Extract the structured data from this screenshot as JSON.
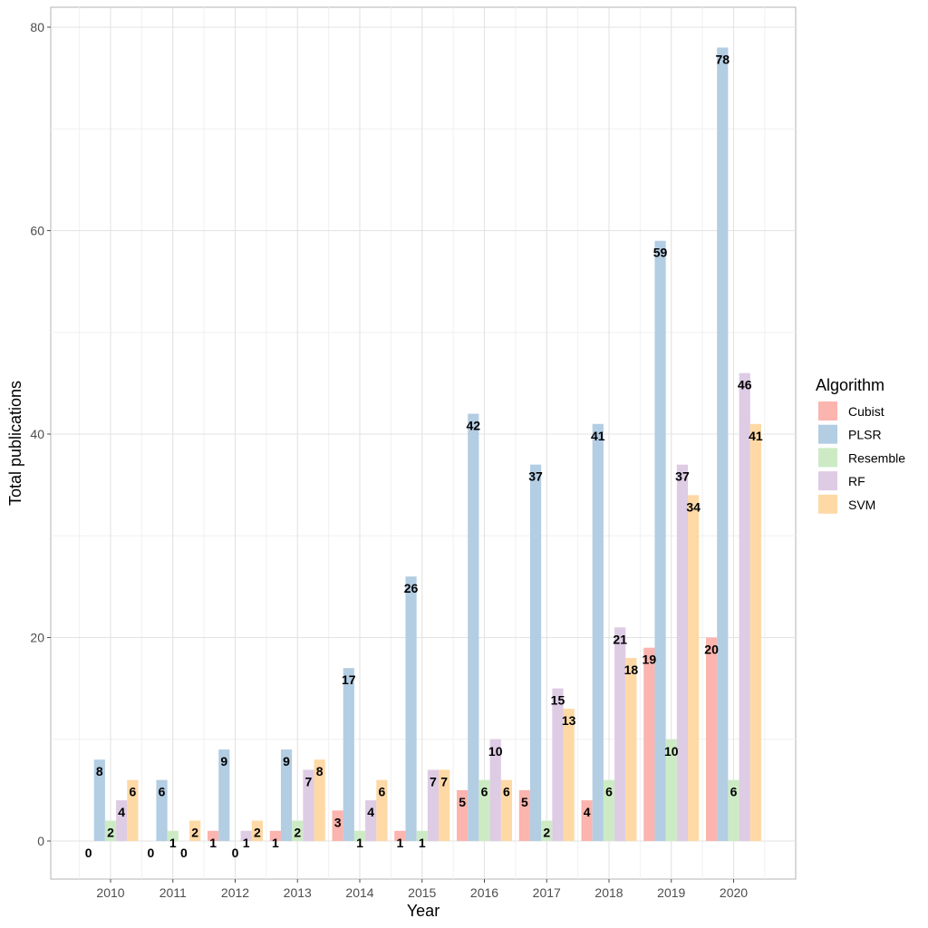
{
  "chart_data": {
    "type": "bar",
    "xlabel": "Year",
    "ylabel": "Total publications",
    "categories": [
      "2010",
      "2011",
      "2012",
      "2013",
      "2014",
      "2015",
      "2016",
      "2017",
      "2018",
      "2019",
      "2020"
    ],
    "ylim": [
      -4,
      80
    ],
    "yticks": [
      0,
      20,
      40,
      60,
      80
    ],
    "grid": true,
    "legend": {
      "title": "Algorithm",
      "position": "right"
    },
    "series": [
      {
        "name": "Cubist",
        "color": "#FBB4AE",
        "values": [
          0,
          0,
          1,
          1,
          3,
          1,
          5,
          5,
          4,
          19,
          20
        ]
      },
      {
        "name": "PLSR",
        "color": "#B3CDE3",
        "values": [
          8,
          6,
          9,
          9,
          17,
          26,
          42,
          37,
          41,
          59,
          78
        ]
      },
      {
        "name": "Resemble",
        "color": "#CCEBC5",
        "values": [
          2,
          1,
          0,
          2,
          1,
          1,
          6,
          2,
          6,
          10,
          6
        ]
      },
      {
        "name": "RF",
        "color": "#DECBE4",
        "values": [
          4,
          0,
          1,
          7,
          4,
          7,
          10,
          15,
          21,
          37,
          46
        ]
      },
      {
        "name": "SVM",
        "color": "#FED9A6",
        "values": [
          6,
          2,
          2,
          8,
          6,
          7,
          6,
          13,
          18,
          34,
          41
        ]
      }
    ]
  }
}
